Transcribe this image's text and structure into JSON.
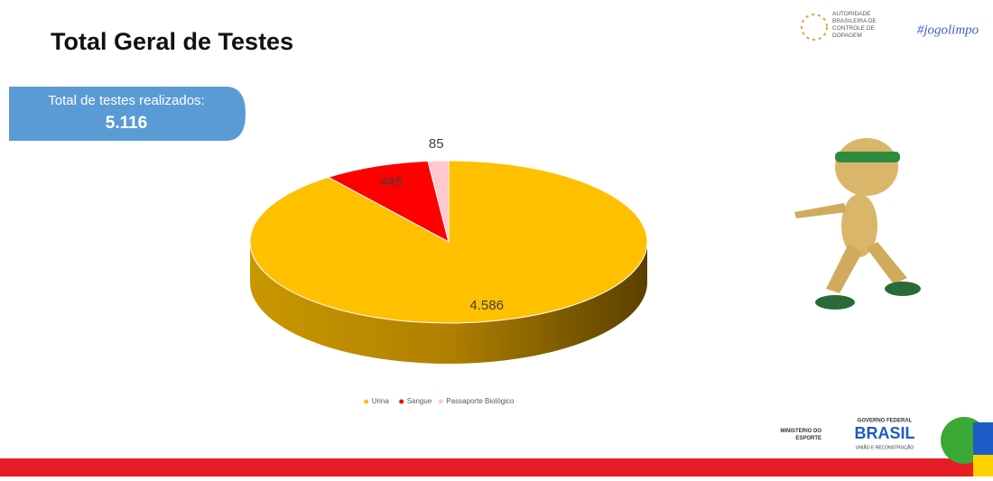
{
  "chart_data": {
    "type": "pie3d",
    "title": "Total Geral de Testes",
    "summary": {
      "label": "Total de testes realizados:",
      "value": "5.116"
    },
    "categories": [
      "Urina",
      "Sangue",
      "Passaporte Biológico"
    ],
    "values": [
      4586,
      445,
      85
    ],
    "value_labels": [
      "4.586",
      "445",
      "85"
    ],
    "colors": [
      "#ffc000",
      "#ff0000",
      "#ffc7ce"
    ],
    "legend": "bottom"
  },
  "logos": {
    "agency": "AUTORIDADE BRASILEIRA DE CONTROLE DE DOPAGEM",
    "hashtag": "#jogolimpo",
    "ministry": "MINISTÉRIO DO ESPORTE",
    "government": "GOVERNO FEDERAL",
    "country": "BRASIL",
    "motto": "UNIÃO E RECONSTRUÇÃO"
  }
}
